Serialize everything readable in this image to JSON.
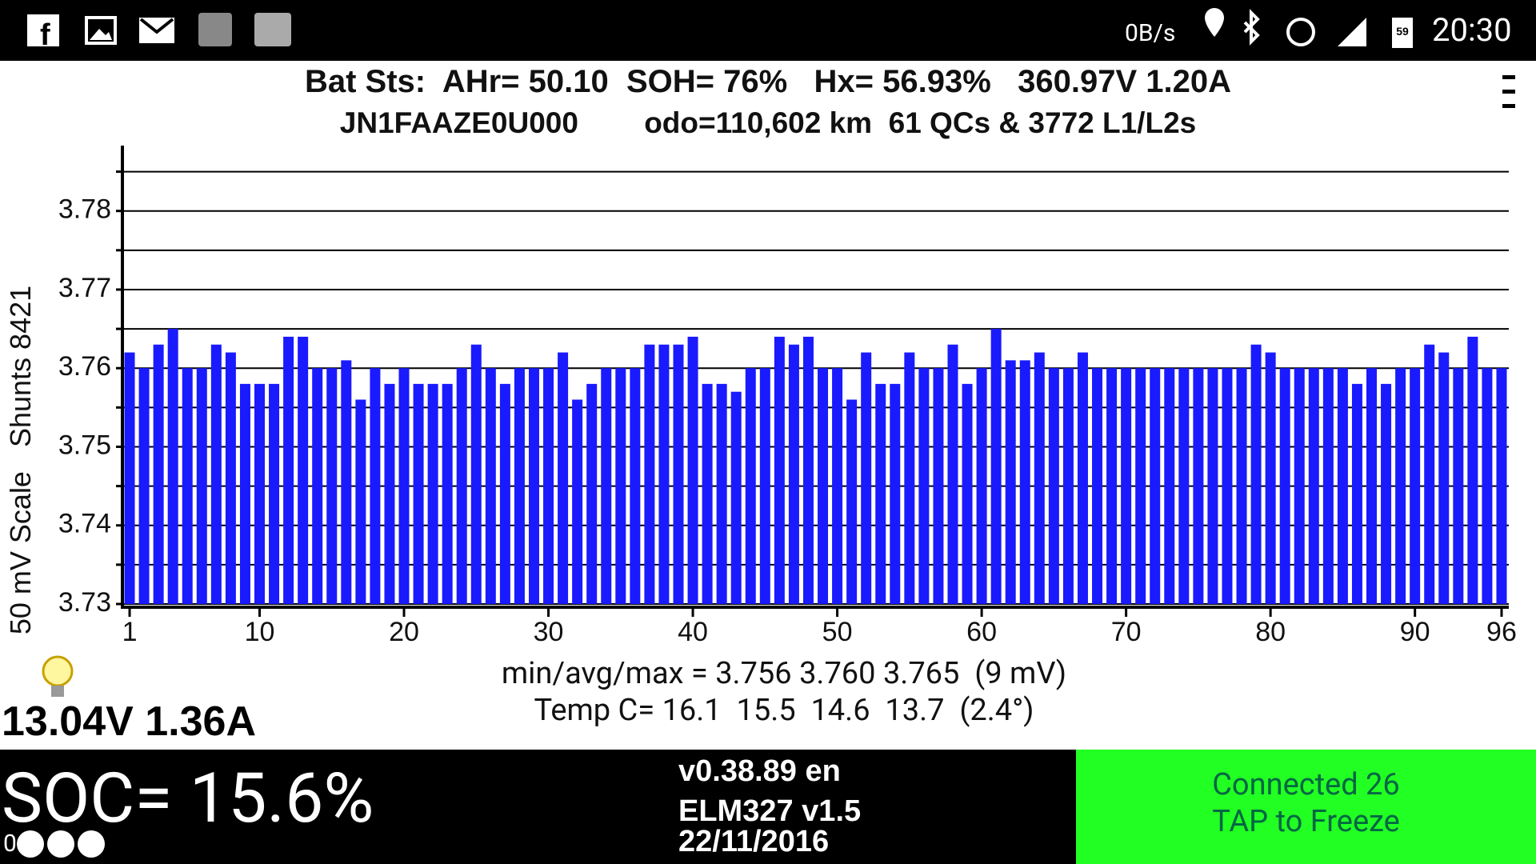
{
  "status_bar": {
    "net_speed": "0B/s",
    "battery": "59",
    "time": "20:30"
  },
  "header": {
    "line1": "Bat Sts:  AHr= 50.10  SOH= 76%   Hx= 56.93%   360.97V 1.20A",
    "line2": "JN1FAAZE0U000        odo=110,602 km  61 QCs & 3772 L1/L2s"
  },
  "chart_data": {
    "type": "bar",
    "y_label": "50 mV Scale   Shunts 8421",
    "x": [
      1,
      2,
      3,
      4,
      5,
      6,
      7,
      8,
      9,
      10,
      11,
      12,
      13,
      14,
      15,
      16,
      17,
      18,
      19,
      20,
      21,
      22,
      23,
      24,
      25,
      26,
      27,
      28,
      29,
      30,
      31,
      32,
      33,
      34,
      35,
      36,
      37,
      38,
      39,
      40,
      41,
      42,
      43,
      44,
      45,
      46,
      47,
      48,
      49,
      50,
      51,
      52,
      53,
      54,
      55,
      56,
      57,
      58,
      59,
      60,
      61,
      62,
      63,
      64,
      65,
      66,
      67,
      68,
      69,
      70,
      71,
      72,
      73,
      74,
      75,
      76,
      77,
      78,
      79,
      80,
      81,
      82,
      83,
      84,
      85,
      86,
      87,
      88,
      89,
      90,
      91,
      92,
      93,
      94,
      95,
      96
    ],
    "values": [
      3.762,
      3.76,
      3.763,
      3.765,
      3.76,
      3.76,
      3.763,
      3.762,
      3.758,
      3.758,
      3.758,
      3.764,
      3.764,
      3.76,
      3.76,
      3.761,
      3.756,
      3.76,
      3.758,
      3.76,
      3.758,
      3.758,
      3.758,
      3.76,
      3.763,
      3.76,
      3.758,
      3.76,
      3.76,
      3.76,
      3.762,
      3.756,
      3.758,
      3.76,
      3.76,
      3.76,
      3.763,
      3.763,
      3.763,
      3.764,
      3.758,
      3.758,
      3.757,
      3.76,
      3.76,
      3.764,
      3.763,
      3.764,
      3.76,
      3.76,
      3.756,
      3.762,
      3.758,
      3.758,
      3.762,
      3.76,
      3.76,
      3.763,
      3.758,
      3.76,
      3.765,
      3.761,
      3.761,
      3.762,
      3.76,
      3.76,
      3.762,
      3.76,
      3.76,
      3.76,
      3.76,
      3.76,
      3.76,
      3.76,
      3.76,
      3.76,
      3.76,
      3.76,
      3.763,
      3.762,
      3.76,
      3.76,
      3.76,
      3.76,
      3.76,
      3.758,
      3.76,
      3.758,
      3.76,
      3.76,
      3.763,
      3.762,
      3.76,
      3.764,
      3.76,
      3.76
    ],
    "color": "#1a1aff",
    "xlim": [
      0.5,
      96.5
    ],
    "xticks": [
      1,
      10,
      20,
      30,
      40,
      50,
      60,
      70,
      80,
      90,
      96
    ],
    "ylim": [
      3.73,
      3.7875
    ],
    "yticks": [
      3.73,
      3.74,
      3.75,
      3.76,
      3.77,
      3.78
    ],
    "minor_yticks": [
      3.735,
      3.745,
      3.755,
      3.765,
      3.775,
      3.785
    ],
    "grid": true
  },
  "stats": {
    "minmax": "min/avg/max = 3.756 3.760 3.765  (9 mV)",
    "temp": "Temp C= 16.1  15.5  14.6  13.7  (2.4°)"
  },
  "aux_battery": "13.04V 1.36A",
  "footer": {
    "soc": "SOC= 15.6%",
    "soc_digit": "0",
    "version": "v0.38.89 en",
    "adapter": "ELM327 v1.5",
    "date": "22/11/2016",
    "connection": "Connected 26",
    "action": "TAP to Freeze"
  }
}
